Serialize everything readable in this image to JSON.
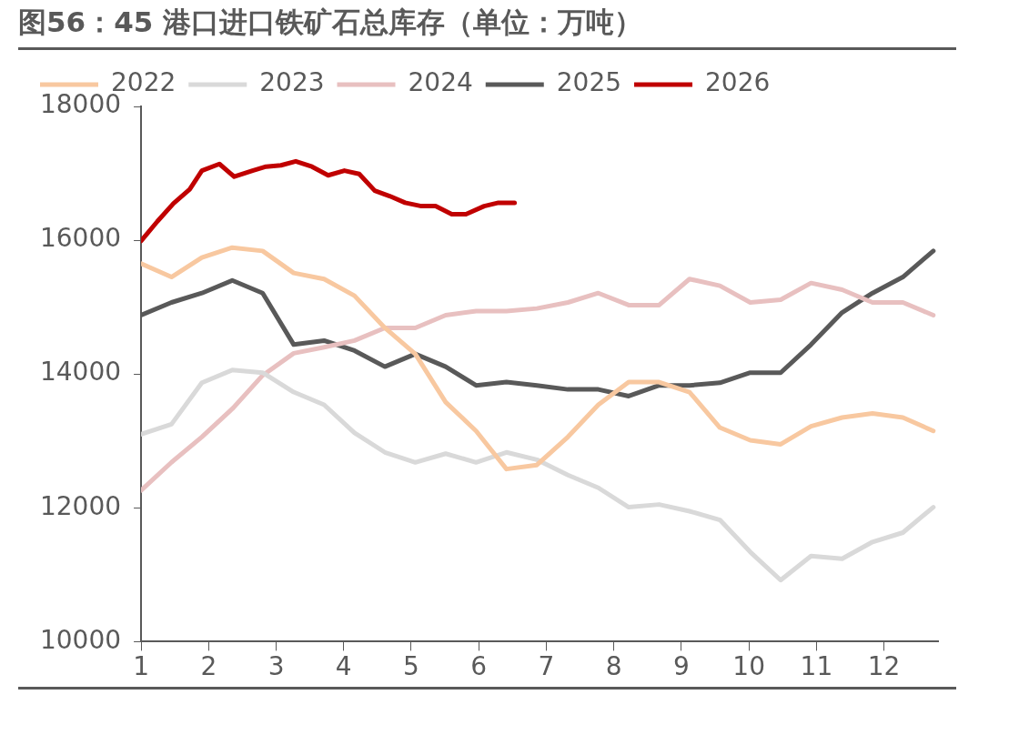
{
  "chart_data": {
    "type": "line",
    "title": "图56：45 港口进口铁矿石总库存（单位：万吨）",
    "x": [
      1,
      1.45,
      1.9,
      2.35,
      2.8,
      3.26,
      3.71,
      4.16,
      4.61,
      5.06,
      5.51,
      5.96,
      6.41,
      6.86,
      7.32,
      7.77,
      8.22,
      8.67,
      9.12,
      9.57,
      10.02,
      10.47,
      10.92,
      11.38,
      11.83,
      12.28,
      12.73
    ],
    "xlim": [
      1,
      12.8
    ],
    "xticks": [
      1,
      2,
      3,
      4,
      5,
      6,
      7,
      8,
      9,
      10,
      11,
      12
    ],
    "ylim": [
      10000,
      18000
    ],
    "yticks": [
      10000,
      12000,
      14000,
      16000,
      18000
    ],
    "grid": false,
    "legend": "top",
    "marker": "none",
    "line_style": "solid",
    "series": [
      {
        "name": "2022",
        "color": "#f8c8a0",
        "values": [
          15650,
          15450,
          15740,
          15890,
          15840,
          15510,
          15420,
          15170,
          14690,
          14300,
          13580,
          13150,
          12580,
          12640,
          13060,
          13540,
          13880,
          13880,
          13730,
          13200,
          13010,
          12950,
          13220,
          13350,
          13410,
          13350,
          13150
        ]
      },
      {
        "name": "2023",
        "color": "#d9d9d9",
        "values": [
          13100,
          13250,
          13870,
          14060,
          14020,
          13730,
          13540,
          13120,
          12830,
          12680,
          12810,
          12680,
          12830,
          12720,
          12490,
          12300,
          12010,
          12050,
          11950,
          11820,
          11340,
          10920,
          11280,
          11240,
          11490,
          11630,
          12010
        ]
      },
      {
        "name": "2024",
        "color": "#e8c0c0",
        "values": [
          12260,
          12680,
          13060,
          13480,
          13980,
          14310,
          14400,
          14500,
          14690,
          14690,
          14880,
          14940,
          14940,
          14980,
          15070,
          15210,
          15030,
          15030,
          15420,
          15320,
          15070,
          15110,
          15360,
          15260,
          15070,
          15070,
          14880
        ]
      },
      {
        "name": "2025",
        "color": "#595959",
        "values": [
          14880,
          15070,
          15210,
          15400,
          15210,
          14440,
          14500,
          14350,
          14110,
          14300,
          14110,
          13830,
          13880,
          13830,
          13770,
          13770,
          13670,
          13830,
          13830,
          13870,
          14020,
          14020,
          14440,
          14920,
          15210,
          15450,
          15840
        ]
      },
      {
        "name": "2026",
        "color": "#c00000",
        "x": [
          1,
          1.24,
          1.48,
          1.72,
          1.9,
          2.16,
          2.38,
          2.65,
          2.85,
          3.07,
          3.29,
          3.53,
          3.77,
          4.01,
          4.23,
          4.46,
          4.68,
          4.91,
          5.15,
          5.36,
          5.6,
          5.81,
          6.08,
          6.29,
          6.53
        ],
        "values": [
          15990,
          16280,
          16550,
          16760,
          17040,
          17140,
          16950,
          17040,
          17100,
          17120,
          17180,
          17100,
          16970,
          17040,
          16990,
          16740,
          16660,
          16560,
          16510,
          16510,
          16390,
          16390,
          16510,
          16560,
          16560
        ]
      }
    ]
  }
}
